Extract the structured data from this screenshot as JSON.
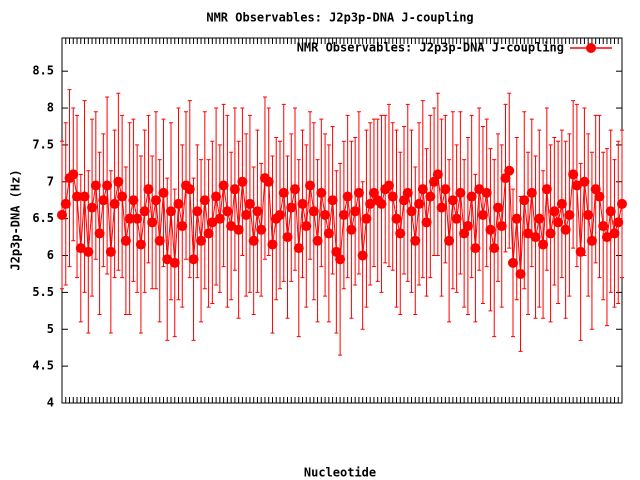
{
  "chart_data": {
    "type": "errorline",
    "title": "NMR Observables: J2p3p-DNA J-coupling",
    "xlabel": "Nucleotide",
    "ylabel": "J2p3p-DNA (Hz)",
    "legend": "top-right",
    "series": [
      {
        "name": "NMR Observables: J2p3p-DNA J-coupling",
        "color": "#ff0000",
        "values": [
          6.55,
          6.7,
          7.05,
          7.1,
          6.8,
          6.1,
          6.8,
          6.05,
          6.65,
          6.95,
          6.3,
          6.75,
          6.95,
          6.05,
          6.7,
          7.0,
          6.8,
          6.2,
          6.5,
          6.75,
          6.5,
          6.15,
          6.6,
          6.9,
          6.45,
          6.75,
          6.2,
          6.85,
          5.95,
          6.6,
          5.9,
          6.7,
          6.4,
          6.95,
          6.9,
          5.95,
          6.6,
          6.2,
          6.75,
          6.3,
          6.45,
          6.8,
          6.5,
          6.95,
          6.6,
          6.4,
          6.9,
          6.35,
          7.0,
          6.55,
          6.7,
          6.2,
          6.6,
          6.35,
          7.05,
          7.0,
          6.15,
          6.5,
          6.55,
          6.85,
          6.25,
          6.65,
          6.9,
          6.1,
          6.7,
          6.4,
          6.95,
          6.6,
          6.2,
          6.85,
          6.55,
          6.3,
          6.75,
          6.05,
          5.95,
          6.55,
          6.8,
          6.35,
          6.6,
          6.85,
          6.0,
          6.5,
          6.7,
          6.85,
          6.75,
          6.7,
          6.9,
          6.95,
          6.8,
          6.5,
          6.3,
          6.75,
          6.85,
          6.6,
          6.2,
          6.7,
          6.9,
          6.45,
          6.8,
          7.0,
          7.1,
          6.65,
          6.9,
          6.2,
          6.75,
          6.5,
          6.85,
          6.3,
          6.4,
          6.8,
          6.1,
          6.9,
          6.55,
          6.85,
          6.35,
          6.1,
          6.65,
          6.4,
          7.05,
          7.15,
          5.9,
          6.5,
          5.75,
          6.75,
          6.3,
          6.85,
          6.25,
          6.5,
          6.15,
          6.9,
          6.3,
          6.6,
          6.45,
          6.7,
          6.35,
          6.55,
          7.1,
          6.95,
          6.05,
          7.0,
          6.55,
          6.2,
          6.9,
          6.8,
          6.4,
          6.25,
          6.6,
          6.3,
          6.45,
          6.7
        ],
        "errors": [
          1.0,
          1.1,
          1.2,
          0.9,
          1.1,
          1.0,
          1.3,
          1.1,
          1.2,
          1.0,
          1.1,
          0.9,
          1.2,
          1.1,
          1.0,
          1.2,
          1.1,
          1.0,
          1.3,
          1.1,
          1.0,
          1.2,
          1.1,
          1.0,
          0.9,
          1.2,
          1.1,
          1.0,
          1.1,
          1.2,
          1.0,
          1.3,
          1.1,
          1.0,
          1.2,
          1.1,
          0.9,
          1.1,
          1.2,
          1.0,
          1.1,
          1.2,
          1.0,
          1.1,
          1.3,
          1.0,
          1.1,
          1.2,
          1.0,
          1.1,
          1.2,
          1.0,
          1.1,
          0.9,
          1.1,
          1.0,
          1.2,
          1.1,
          1.0,
          1.2,
          1.1,
          1.0,
          1.1,
          1.2,
          1.0,
          1.1,
          1.0,
          1.2,
          1.1,
          1.0,
          1.1,
          1.2,
          1.0,
          1.1,
          1.3,
          1.0,
          1.1,
          1.2,
          1.0,
          1.1,
          1.0,
          1.2,
          1.1,
          1.0,
          1.1,
          1.2,
          1.0,
          1.1,
          1.0,
          1.2,
          1.1,
          1.0,
          1.2,
          1.1,
          1.0,
          1.1,
          1.2,
          1.0,
          1.1,
          1.0,
          1.1,
          1.2,
          1.0,
          1.1,
          1.2,
          1.0,
          1.1,
          1.0,
          1.2,
          1.1,
          1.0,
          1.1,
          1.2,
          1.0,
          1.1,
          1.2,
          1.0,
          1.1,
          1.0,
          1.05,
          1.0,
          1.1,
          1.05,
          1.2,
          1.1,
          1.0,
          1.1,
          1.2,
          1.0,
          1.1,
          1.2,
          1.0,
          1.1,
          1.0,
          1.2,
          1.1,
          1.0,
          1.1,
          1.2,
          1.0,
          1.1,
          1.2,
          1.0,
          1.1,
          1.0,
          1.2,
          1.1,
          1.0,
          1.1,
          1.0
        ]
      }
    ],
    "x": [
      1,
      2,
      3,
      4,
      5,
      6,
      7,
      8,
      9,
      10,
      11,
      12,
      13,
      14,
      15,
      16,
      17,
      18,
      19,
      20,
      21,
      22,
      23,
      24,
      25,
      26,
      27,
      28,
      29,
      30,
      31,
      32,
      33,
      34,
      35,
      36,
      37,
      38,
      39,
      40,
      41,
      42,
      43,
      44,
      45,
      46,
      47,
      48,
      49,
      50,
      51,
      52,
      53,
      54,
      55,
      56,
      57,
      58,
      59,
      60,
      61,
      62,
      63,
      64,
      65,
      66,
      67,
      68,
      69,
      70,
      71,
      72,
      73,
      74,
      75,
      76,
      77,
      78,
      79,
      80,
      81,
      82,
      83,
      84,
      85,
      86,
      87,
      88,
      89,
      90,
      91,
      92,
      93,
      94,
      95,
      96,
      97,
      98,
      99,
      100,
      101,
      102,
      103,
      104,
      105,
      106,
      107,
      108,
      109,
      110,
      111,
      112,
      113,
      114,
      115,
      116,
      117,
      118,
      119,
      120,
      121,
      122,
      123,
      124,
      125,
      126,
      127,
      128,
      129,
      130,
      131,
      132,
      133,
      134,
      135,
      136,
      137,
      138,
      139,
      140,
      141,
      142,
      143,
      144,
      145,
      146,
      147,
      148,
      149,
      150
    ],
    "xlim": [
      1,
      150
    ],
    "ylim": [
      4,
      8.95
    ],
    "yticks": [
      4,
      4.5,
      5,
      5.5,
      6,
      6.5,
      7,
      7.5,
      8,
      8.5
    ]
  }
}
